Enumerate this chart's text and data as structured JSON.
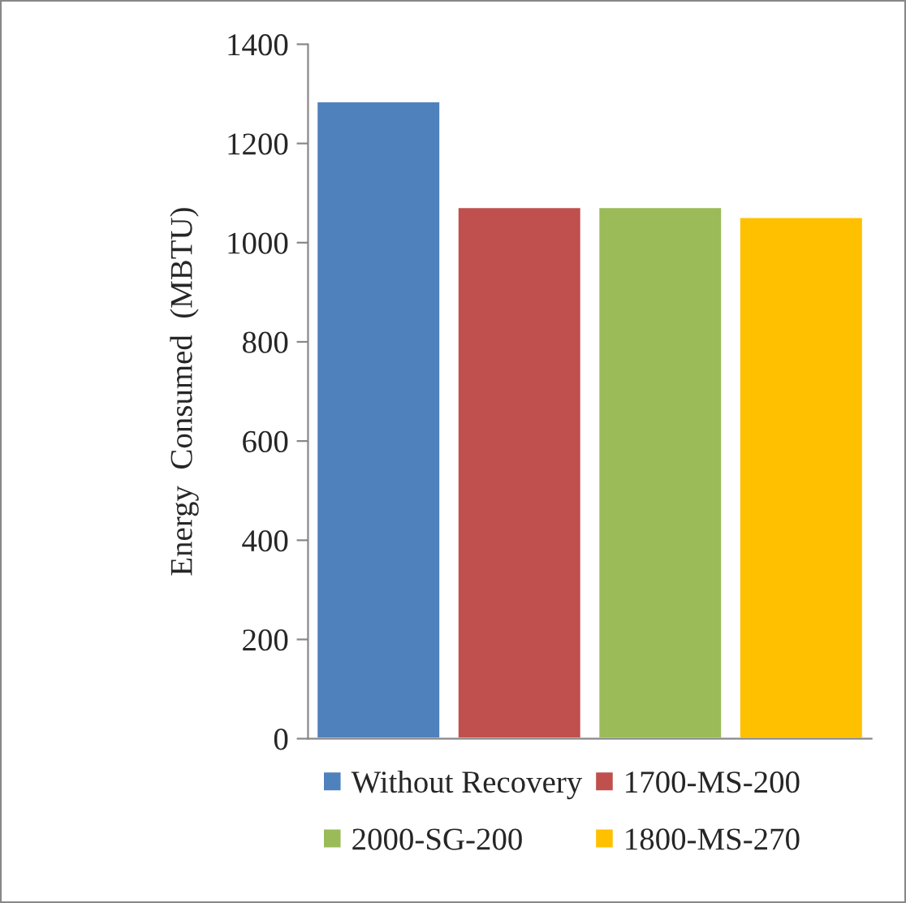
{
  "chart_data": {
    "type": "bar",
    "categories": [
      null
    ],
    "ylabel": "Energy  Consumed  (MBTU)",
    "series": [
      {
        "name": "Without Recovery",
        "color": "#4f81bd",
        "values": [
          1285
        ]
      },
      {
        "name": "1700-MS-200",
        "color": "#c0504d",
        "values": [
          1072
        ]
      },
      {
        "name": "2000-SG-200",
        "color": "#9bbb59",
        "values": [
          1072
        ]
      },
      {
        "name": "1800-MS-270",
        "color": "#ffc000",
        "values": [
          1052
        ]
      }
    ],
    "ylim": [
      0,
      1400
    ],
    "yticks": [
      0,
      200,
      400,
      600,
      800,
      1000,
      1200,
      1400
    ],
    "grid": false,
    "legend": "bottom",
    "tick_labels": "y"
  }
}
